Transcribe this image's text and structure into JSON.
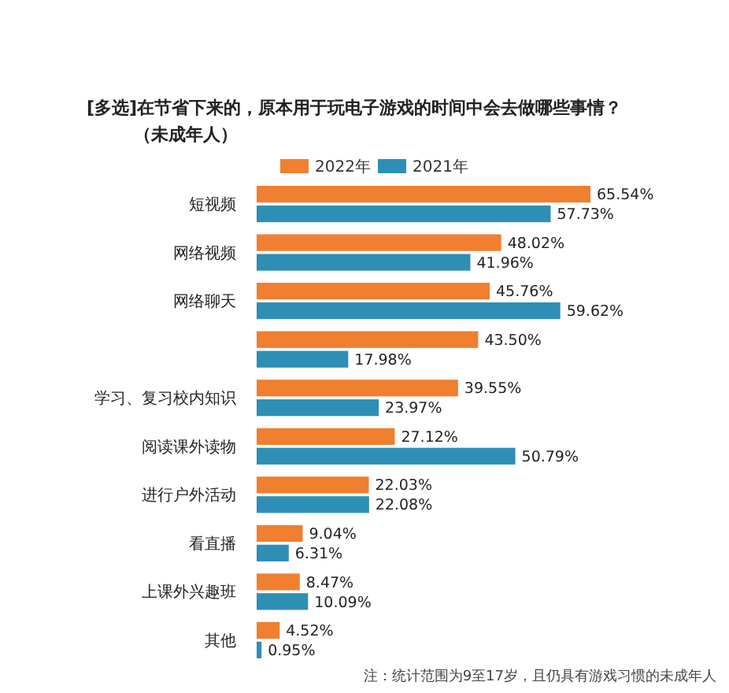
{
  "chart_data": {
    "type": "bar",
    "orientation": "horizontal",
    "title": "[多选]在节省下来的，原本用于玩电子游戏的时间中会去做哪些事情？",
    "subtitle": "（未成年人）",
    "categories": [
      "短视频",
      "网络视频",
      "网络聊天",
      null,
      "学习、复习校内知识",
      "阅读课外读物",
      "进行户外活动",
      "看直播",
      "上课外兴趣班",
      "其他"
    ],
    "series": [
      {
        "name": "2022年",
        "color": "#f07f2f",
        "values": [
          65.54,
          48.02,
          45.76,
          43.5,
          39.55,
          27.12,
          22.03,
          9.04,
          8.47,
          4.52
        ],
        "value_labels": [
          "65.54%",
          "48.02%",
          "45.76%",
          "43.50%",
          "39.55%",
          "27.12%",
          "22.03%",
          "9.04%",
          "8.47%",
          "4.52%"
        ]
      },
      {
        "name": "2021年",
        "color": "#2e8fb5",
        "values": [
          57.73,
          41.96,
          59.62,
          17.98,
          23.97,
          50.79,
          22.08,
          6.31,
          10.09,
          0.95
        ],
        "value_labels": [
          "57.73%",
          "41.96%",
          "59.62%",
          "17.98%",
          "23.97%",
          "50.79%",
          "22.08%",
          "6.31%",
          "10.09%",
          "0.95%"
        ]
      }
    ],
    "legend": "top",
    "annotations": [
      "注：统计范围为9至17岁，且仍具有游戏习惯的未成年人"
    ]
  }
}
